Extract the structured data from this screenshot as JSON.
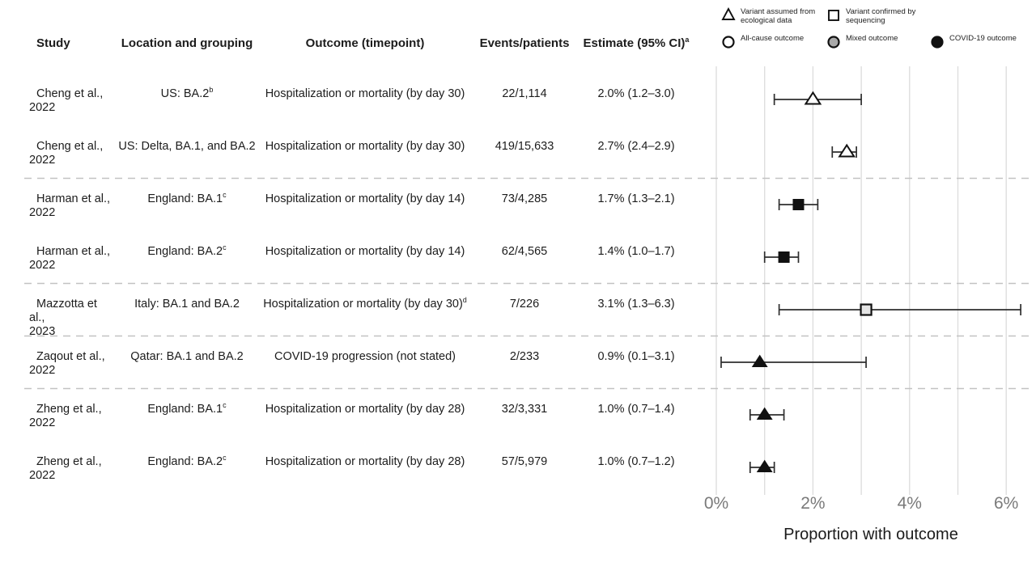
{
  "legend": {
    "items": [
      {
        "icon": "triangle-open",
        "label_lines": [
          "Variant assumed from",
          "ecological data"
        ]
      },
      {
        "icon": "square-open",
        "label_lines": [
          "Variant confirmed by",
          "sequencing"
        ]
      },
      {
        "icon": "circle-open",
        "label_lines": [
          "All-cause outcome"
        ]
      },
      {
        "icon": "circle-mixed",
        "label_lines": [
          "Mixed outcome"
        ]
      },
      {
        "icon": "circle-filled",
        "label_lines": [
          "COVID-19 outcome"
        ]
      }
    ]
  },
  "table": {
    "headers": {
      "study": "Study",
      "location": "Location and grouping",
      "outcome": "Outcome (timepoint)",
      "events": "Events/patients",
      "estimate": "Estimate (95% CI)",
      "estimate_sup": "a"
    }
  },
  "chart_data": {
    "type": "forest",
    "xlabel": "Proportion with outcome",
    "x_axis": {
      "tick_values": [
        0,
        2,
        4,
        6
      ],
      "tick_labels": [
        "0%",
        "2%",
        "4%",
        "6%"
      ],
      "gridline_values": [
        0,
        1,
        2,
        3,
        4,
        5,
        6
      ],
      "xlim": [
        0,
        6.6
      ],
      "unit": "%"
    },
    "rows": [
      {
        "study": "Cheng et al.,",
        "year": "2022",
        "location": "US: BA.2",
        "location_sup": "b",
        "outcome": "Hospitalization or mortality (by day 30)",
        "outcome_sup": "",
        "events": "22/1,114",
        "estimate_label": "2.0% (1.2–3.0)",
        "estimate": 2.0,
        "ci": [
          1.2,
          3.0
        ],
        "marker": "triangle-open"
      },
      {
        "study": "Cheng et al.,",
        "year": "2022",
        "location": "US: Delta, BA.1, and BA.2",
        "location_sup": "",
        "outcome": "Hospitalization or mortality (by day 30)",
        "outcome_sup": "",
        "events": "419/15,633",
        "estimate_label": "2.7% (2.4–2.9)",
        "estimate": 2.7,
        "ci": [
          2.4,
          2.9
        ],
        "marker": "triangle-open"
      },
      {
        "study": "Harman et al.,",
        "year": "2022",
        "location": "England: BA.1",
        "location_sup": "c",
        "outcome": "Hospitalization or mortality (by day 14)",
        "outcome_sup": "",
        "events": "73/4,285",
        "estimate_label": "1.7% (1.3–2.1)",
        "estimate": 1.7,
        "ci": [
          1.3,
          2.1
        ],
        "marker": "square-filled"
      },
      {
        "study": "Harman et al.,",
        "year": "2022",
        "location": "England: BA.2",
        "location_sup": "c",
        "outcome": "Hospitalization or mortality (by day 14)",
        "outcome_sup": "",
        "events": "62/4,565",
        "estimate_label": "1.4% (1.0–1.7)",
        "estimate": 1.4,
        "ci": [
          1.0,
          1.7
        ],
        "marker": "square-filled"
      },
      {
        "study": "Mazzotta et al.,",
        "year": "2023",
        "location": "Italy: BA.1 and BA.2",
        "location_sup": "",
        "outcome": "Hospitalization or mortality (by day 30)",
        "outcome_sup": "d",
        "events": "7/226",
        "estimate_label": "3.1% (1.3–6.3)",
        "estimate": 3.1,
        "ci": [
          1.3,
          6.3
        ],
        "marker": "square-open"
      },
      {
        "study": "Zaqout et al.,",
        "year": "2022",
        "location": "Qatar: BA.1 and BA.2",
        "location_sup": "",
        "outcome": "COVID-19 progression (not stated)",
        "outcome_sup": "",
        "events": "2/233",
        "estimate_label": "0.9% (0.1–3.1)",
        "estimate": 0.9,
        "ci": [
          0.1,
          3.1
        ],
        "marker": "triangle-filled"
      },
      {
        "study": "Zheng et al.,",
        "year": "2022",
        "location": "England: BA.1",
        "location_sup": "c",
        "outcome": "Hospitalization or mortality (by day 28)",
        "outcome_sup": "",
        "events": "32/3,331",
        "estimate_label": "1.0% (0.7–1.4)",
        "estimate": 1.0,
        "ci": [
          0.7,
          1.4
        ],
        "marker": "triangle-filled"
      },
      {
        "study": "Zheng et al.,",
        "year": "2022",
        "location": "England: BA.2",
        "location_sup": "c",
        "outcome": "Hospitalization or mortality (by day 28)",
        "outcome_sup": "",
        "events": "57/5,979",
        "estimate_label": "1.0% (0.7–1.2)",
        "estimate": 1.0,
        "ci": [
          0.7,
          1.2
        ],
        "marker": "triangle-filled"
      }
    ],
    "separators_after": [
      1,
      3,
      4,
      5
    ],
    "legend_position": "top-right",
    "grid": "vertical-only",
    "colors": {
      "marker": "#111111",
      "marker_open_fill": "#ffffff",
      "square_open_fill": "#e4e4e4",
      "mixed_fill": "#a9a9a9",
      "errorbar": "#2e2e2e",
      "gridline": "#dcdcdc",
      "separator": "#c2c2c2",
      "tick_label": "#7a7a7a",
      "axis_title": "#1b1b1b",
      "text": "#1c1c1c"
    }
  }
}
